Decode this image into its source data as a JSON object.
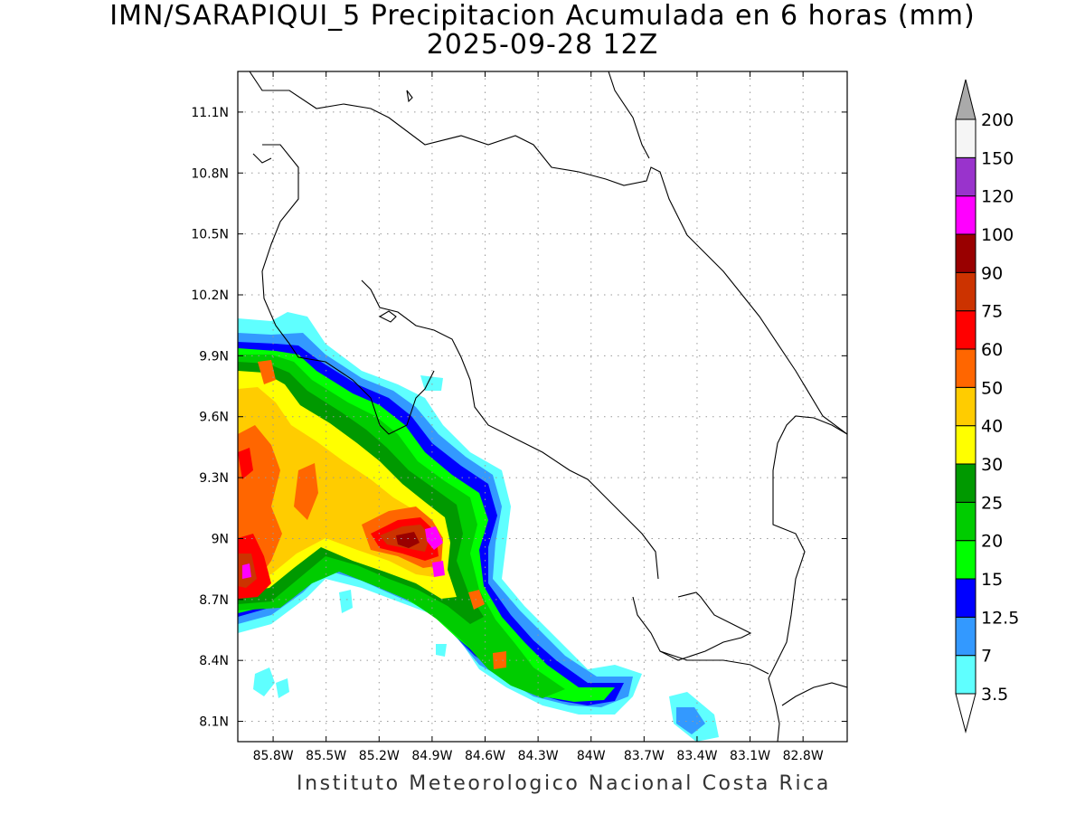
{
  "title": {
    "line1": "IMN/SARAPIQUI_5 Precipitacion Acumulada en 6 horas (mm)",
    "line2": "2025-09-28 12Z"
  },
  "credit": "Instituto Meteorologico Nacional Costa Rica",
  "map": {
    "lon_range": [
      -86.0,
      -82.55
    ],
    "lat_range": [
      8.0,
      11.3
    ],
    "lat_ticks": [
      {
        "value": 11.1,
        "label": "11.1N"
      },
      {
        "value": 10.8,
        "label": "10.8N"
      },
      {
        "value": 10.5,
        "label": "10.5N"
      },
      {
        "value": 10.2,
        "label": "10.2N"
      },
      {
        "value": 9.9,
        "label": "9.9N"
      },
      {
        "value": 9.6,
        "label": "9.6N"
      },
      {
        "value": 9.3,
        "label": "9.3N"
      },
      {
        "value": 9.0,
        "label": "9N"
      },
      {
        "value": 8.7,
        "label": "8.7N"
      },
      {
        "value": 8.4,
        "label": "8.4N"
      },
      {
        "value": 8.1,
        "label": "8.1N"
      }
    ],
    "lon_ticks": [
      {
        "value": -85.8,
        "label": "85.8W"
      },
      {
        "value": -85.5,
        "label": "85.5W"
      },
      {
        "value": -85.2,
        "label": "85.2W"
      },
      {
        "value": -84.9,
        "label": "84.9W"
      },
      {
        "value": -84.6,
        "label": "84.6W"
      },
      {
        "value": -84.3,
        "label": "84.3W"
      },
      {
        "value": -84.0,
        "label": "84W"
      },
      {
        "value": -83.7,
        "label": "83.7W"
      },
      {
        "value": -83.4,
        "label": "83.4W"
      },
      {
        "value": -83.1,
        "label": "83.1W"
      },
      {
        "value": -82.8,
        "label": "82.8W"
      }
    ],
    "grid": true
  },
  "colorbar": {
    "levels": [
      "3.5",
      "7",
      "12.5",
      "15",
      "20",
      "25",
      "30",
      "40",
      "50",
      "60",
      "75",
      "90",
      "100",
      "120",
      "150",
      "200"
    ],
    "colors": [
      "#5fffff",
      "#3399ff",
      "#0000ff",
      "#00ff00",
      "#00cc00",
      "#009900",
      "#ffff00",
      "#ffcc00",
      "#ff6600",
      "#ff0000",
      "#cc3300",
      "#990000",
      "#ff00ff",
      "#9933cc",
      "#f5f5f5"
    ],
    "overflow_color": "#aaaaaa",
    "underflow_color": "#ffffff"
  }
}
